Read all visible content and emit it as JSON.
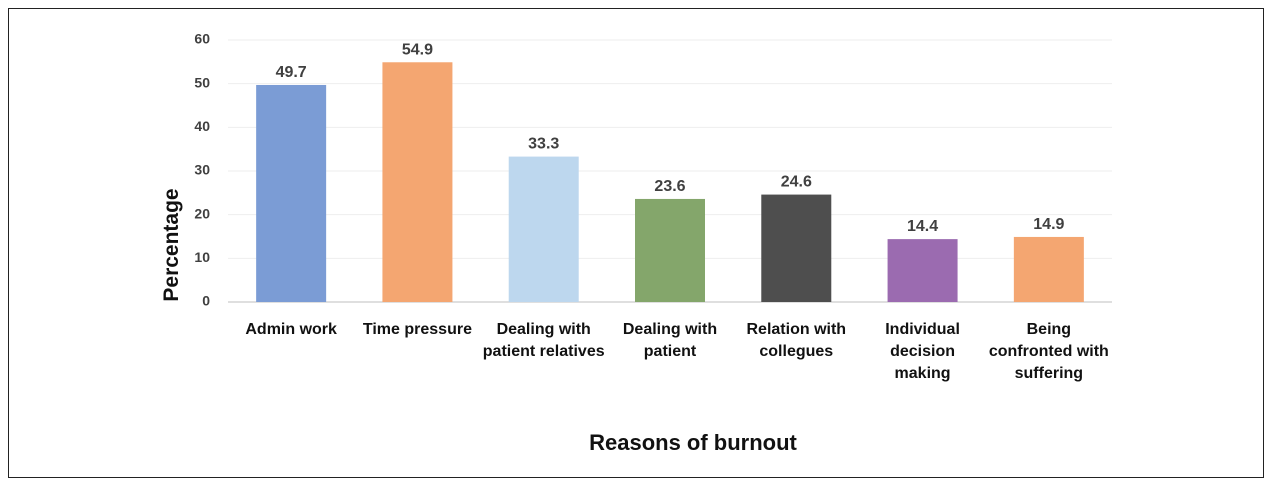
{
  "chart_data": {
    "type": "bar",
    "x_label": "Reasons of burnout",
    "y_label": "Percentage",
    "categories": [
      "Admin work",
      "Time pressure",
      "Dealing with patient relatives",
      "Dealing with patient",
      "Relation with collegues",
      "Individual decision making",
      "Being confronted with suffering"
    ],
    "values": [
      49.7,
      54.9,
      33.3,
      23.6,
      24.6,
      14.4,
      14.9
    ],
    "colors": [
      "#7b9cd5",
      "#f4a671",
      "#bdd7ee",
      "#84a66b",
      "#4e4e4e",
      "#9b6bb0",
      "#f4a671"
    ],
    "ylim": [
      0,
      60
    ],
    "yticks": [
      0,
      10,
      20,
      30,
      40,
      50,
      60
    ],
    "grid": true
  }
}
